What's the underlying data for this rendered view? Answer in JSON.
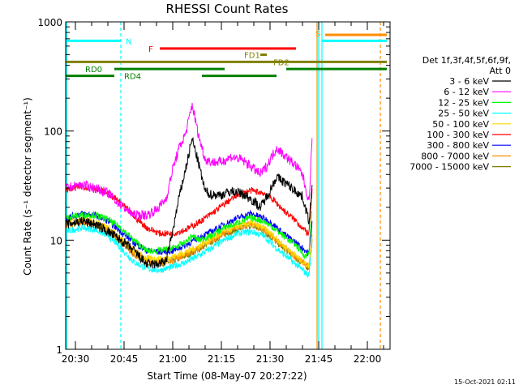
{
  "chart_data": {
    "type": "line",
    "title": "RHESSI Count Rates",
    "xlabel": "Start Time (08-May-07 20:27:22)",
    "ylabel": "Count Rate (s⁻¹ detector segment⁻¹)",
    "y_scale": "log",
    "ylim": [
      1,
      1000
    ],
    "xlim": [
      "20:27",
      "22:07"
    ],
    "x_ticks": [
      "20:30",
      "20:45",
      "21:00",
      "21:15",
      "21:30",
      "21:45",
      "22:00"
    ],
    "y_ticks": [
      "1",
      "10",
      "100",
      "1000"
    ],
    "legend_title": [
      "Det 1f,3f,4f,5f,6f,9f,",
      "Att 0"
    ],
    "series": [
      {
        "name": "3 - 6 keV",
        "color": "#000000",
        "x": [
          "20:27",
          "20:32",
          "20:36",
          "20:40",
          "20:44",
          "20:48",
          "20:52",
          "20:55",
          "20:58",
          "21:00",
          "21:02",
          "21:04",
          "21:06",
          "21:08",
          "21:10",
          "21:12",
          "21:15",
          "21:18",
          "21:21",
          "21:24",
          "21:27",
          "21:29",
          "21:32",
          "21:35",
          "21:38",
          "21:40",
          "21:42",
          "21:43"
        ],
        "values": [
          14,
          15,
          14,
          12,
          10,
          8,
          6,
          6,
          6.5,
          12,
          25,
          45,
          85,
          50,
          28,
          26,
          26,
          28,
          27,
          24,
          20,
          25,
          38,
          33,
          28,
          25,
          15,
          30
        ]
      },
      {
        "name": "6 - 12 keV",
        "color": "#ff00ff",
        "x": [
          "20:27",
          "20:32",
          "20:36",
          "20:40",
          "20:44",
          "20:48",
          "20:52",
          "20:55",
          "20:58",
          "21:00",
          "21:02",
          "21:04",
          "21:06",
          "21:08",
          "21:10",
          "21:12",
          "21:15",
          "21:18",
          "21:21",
          "21:24",
          "21:27",
          "21:29",
          "21:32",
          "21:35",
          "21:38",
          "21:40",
          "21:42",
          "21:43"
        ],
        "values": [
          30,
          32,
          30,
          27,
          21,
          17,
          17,
          19,
          24,
          45,
          70,
          95,
          175,
          90,
          55,
          52,
          52,
          58,
          55,
          48,
          40,
          48,
          70,
          58,
          48,
          40,
          22,
          90
        ]
      },
      {
        "name": "12 - 25 keV",
        "color": "#00ff00",
        "x": [
          "20:27",
          "20:32",
          "20:36",
          "20:40",
          "20:44",
          "20:48",
          "20:52",
          "20:56",
          "21:00",
          "21:02",
          "21:04",
          "21:06",
          "21:08",
          "21:12",
          "21:16",
          "21:20",
          "21:24",
          "21:28",
          "21:31",
          "21:34",
          "21:38",
          "21:41",
          "21:42",
          "21:43"
        ],
        "values": [
          16,
          17,
          17,
          15.5,
          13,
          10,
          8,
          8,
          8.5,
          9,
          9.5,
          11,
          10,
          11,
          13,
          14.5,
          16,
          15,
          13,
          11,
          9,
          7,
          8,
          20
        ]
      },
      {
        "name": "25 - 50 keV",
        "color": "#00ffff",
        "x": [
          "20:27",
          "20:32",
          "20:36",
          "20:40",
          "20:44",
          "20:48",
          "20:52",
          "20:56",
          "21:00",
          "21:04",
          "21:08",
          "21:12",
          "21:16",
          "21:20",
          "21:24",
          "21:28",
          "21:31",
          "21:34",
          "21:38",
          "21:41",
          "21:42",
          "21:43"
        ],
        "values": [
          12,
          13,
          12.5,
          11,
          8.5,
          6.3,
          5.5,
          5.3,
          5.7,
          6.3,
          7.2,
          8.5,
          10,
          11.5,
          12,
          11,
          9,
          7.5,
          6,
          5,
          4.8,
          10
        ]
      },
      {
        "name": "50 - 100 keV",
        "color": "#ffd700",
        "x": [
          "20:27",
          "20:32",
          "20:36",
          "20:40",
          "20:44",
          "20:48",
          "20:52",
          "20:56",
          "21:00",
          "21:04",
          "21:08",
          "21:12",
          "21:16",
          "21:20",
          "21:24",
          "21:28",
          "21:31",
          "21:34",
          "21:38",
          "21:41",
          "21:42",
          "21:43"
        ],
        "values": [
          14.5,
          15.5,
          15,
          13,
          10.5,
          8,
          6.8,
          6.7,
          7,
          7.8,
          8.8,
          10.3,
          12,
          13.5,
          14.3,
          13,
          11,
          9,
          7.2,
          6,
          5.8,
          12
        ]
      },
      {
        "name": "100 - 300 keV",
        "color": "#ff0000",
        "x": [
          "20:27",
          "20:32",
          "20:36",
          "20:40",
          "20:44",
          "20:48",
          "20:52",
          "20:56",
          "21:00",
          "21:04",
          "21:08",
          "21:12",
          "21:16",
          "21:20",
          "21:24",
          "21:28",
          "21:31",
          "21:34",
          "21:38",
          "21:41",
          "21:42",
          "21:43"
        ],
        "values": [
          29,
          31,
          30,
          27,
          22,
          16.5,
          13,
          11.5,
          11.5,
          12.5,
          14.5,
          17.5,
          21.5,
          26,
          28.5,
          27,
          23.5,
          19,
          15,
          12,
          11.5,
          30
        ]
      },
      {
        "name": "300 - 800 keV",
        "color": "#0000ff",
        "x": [
          "20:27",
          "20:32",
          "20:36",
          "20:40",
          "20:44",
          "20:48",
          "20:52",
          "20:56",
          "21:00",
          "21:04",
          "21:08",
          "21:12",
          "21:16",
          "21:20",
          "21:24",
          "21:28",
          "21:31",
          "21:34",
          "21:38",
          "21:41",
          "21:42",
          "21:43"
        ],
        "values": [
          16,
          17.5,
          17,
          15,
          12,
          9.5,
          8,
          7.8,
          8,
          9,
          10.5,
          12,
          14,
          16,
          17.5,
          16,
          14,
          11.5,
          9.5,
          8,
          7.5,
          15
        ]
      },
      {
        "name": "800 - 7000 keV",
        "color": "#ff8c00",
        "x": [
          "20:27",
          "20:32",
          "20:36",
          "20:40",
          "20:44",
          "20:48",
          "20:52",
          "20:56",
          "21:00",
          "21:04",
          "21:08",
          "21:12",
          "21:16",
          "21:20",
          "21:24",
          "21:28",
          "21:31",
          "21:34",
          "21:38",
          "21:41",
          "21:42",
          "21:43"
        ],
        "values": [
          14,
          15,
          14.5,
          12.7,
          10,
          7.5,
          6.5,
          6.3,
          6.6,
          7.4,
          8.4,
          10,
          11.7,
          13,
          14,
          12.5,
          10.5,
          8.7,
          7,
          6,
          5.8,
          11
        ]
      },
      {
        "name": "7000 - 15000 keV",
        "color": "#808000",
        "x": [
          "20:27",
          "20:32",
          "20:36",
          "20:40",
          "20:44",
          "20:48",
          "20:52",
          "20:56",
          "21:00",
          "21:04",
          "21:08",
          "21:12",
          "21:16",
          "21:20",
          "21:24",
          "21:28",
          "21:31",
          "21:34",
          "21:38",
          "21:41",
          "21:42",
          "21:43"
        ],
        "values": [
          13.5,
          14.5,
          14,
          12.2,
          9.7,
          7.3,
          6.3,
          6.1,
          6.4,
          7.2,
          8.2,
          9.7,
          11.3,
          12.6,
          13.6,
          12.2,
          10.2,
          8.5,
          6.8,
          5.8,
          5.6,
          10
        ]
      }
    ],
    "flags": [
      {
        "label": "N",
        "color": "#00ffff",
        "segments": [
          [
            "20:27",
            "20:44"
          ],
          [
            "21:46",
            "22:06"
          ]
        ],
        "level": 670
      },
      {
        "label": "S",
        "color": "#ff8c00",
        "segments": [
          [
            "21:47",
            "22:06"
          ]
        ],
        "level": 760
      },
      {
        "label": "F",
        "color": "#ff0000",
        "segments": [
          [
            "20:56",
            "21:38"
          ]
        ],
        "level": 570
      },
      {
        "label": "FD1",
        "color": "#808000",
        "segments": [
          [
            "21:27",
            "21:29"
          ]
        ],
        "level": 500
      },
      {
        "label": "FD2",
        "color": "#808000",
        "segments": [
          [
            "20:27",
            "22:06"
          ]
        ],
        "level": 430
      },
      {
        "label": "RD0",
        "color": "#008000",
        "segments": [
          [
            "20:42",
            "21:16"
          ],
          [
            "21:35",
            "22:06"
          ]
        ],
        "level": 370
      },
      {
        "label": "RD4",
        "color": "#008000",
        "segments": [
          [
            "20:27",
            "20:42"
          ],
          [
            "21:09",
            "21:32"
          ]
        ],
        "level": 320
      }
    ],
    "vlines": [
      {
        "x": "20:44",
        "color": "#00ffff",
        "style": "dashed"
      },
      {
        "x": "21:45",
        "color": "#00ffff",
        "style": "solid"
      },
      {
        "x": "21:46",
        "color": "#00ffff",
        "style": "solid"
      },
      {
        "x": "22:04",
        "color": "#ff8c00",
        "style": "dashed"
      }
    ],
    "orange_segment": [
      "21:44",
      "21:44"
    ],
    "grid": false,
    "legend_position": "right"
  },
  "footer": {
    "date_stamp": "15-Oct-2021 02:11"
  }
}
